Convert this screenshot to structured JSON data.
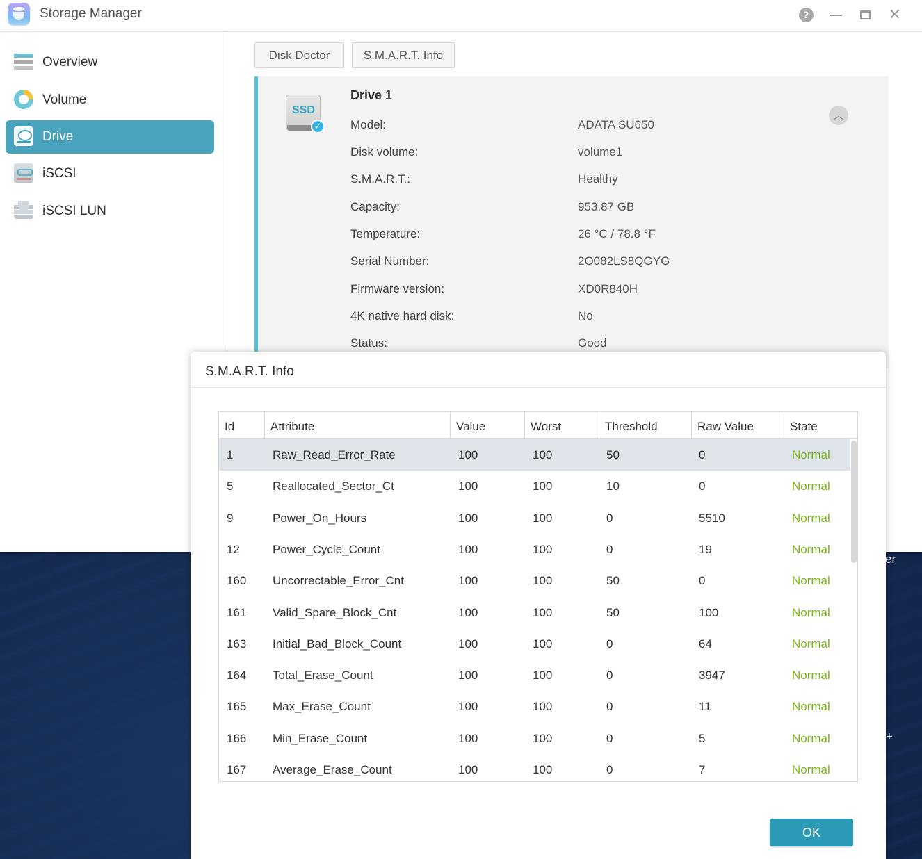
{
  "window": {
    "title": "Storage Manager"
  },
  "titlebar": {
    "help_glyph": "?",
    "close_glyph": "✕"
  },
  "sidebar": {
    "items": [
      {
        "label": "Overview",
        "icon": "overview-icon"
      },
      {
        "label": "Volume",
        "icon": "volume-icon"
      },
      {
        "label": "Drive",
        "icon": "drive-icon",
        "active": true
      },
      {
        "label": "iSCSI",
        "icon": "iscsi-icon"
      },
      {
        "label": "iSCSI LUN",
        "icon": "iscsi-lun-icon"
      }
    ]
  },
  "tabs": {
    "disk_doctor": "Disk Doctor",
    "smart_info": "S.M.A.R.T. Info"
  },
  "drive": {
    "ssd_label": "SSD",
    "title": "Drive 1",
    "properties": [
      {
        "label": "Model:",
        "value": "ADATA SU650"
      },
      {
        "label": "Disk volume:",
        "value": "volume1"
      },
      {
        "label": "S.M.A.R.T.:",
        "value": "Healthy"
      },
      {
        "label": "Capacity:",
        "value": "953.87 GB"
      },
      {
        "label": "Temperature:",
        "value": "26 °C / 78.8 °F"
      },
      {
        "label": "Serial Number:",
        "value": "2O082LS8QGYG"
      },
      {
        "label": "Firmware version:",
        "value": "XD0R840H"
      },
      {
        "label": "4K native hard disk:",
        "value": "No"
      },
      {
        "label": "Status:",
        "value": "Good"
      }
    ]
  },
  "desktop": {
    "fragment_1": "er",
    "fragment_2": "+"
  },
  "dialog": {
    "title": "S.M.A.R.T. Info",
    "columns": [
      "Id",
      "Attribute",
      "Value",
      "Worst",
      "Threshold",
      "Raw Value",
      "State"
    ],
    "rows": [
      {
        "id": "1",
        "attribute": "Raw_Read_Error_Rate",
        "value": "100",
        "worst": "100",
        "threshold": "50",
        "raw": "0",
        "state": "Normal"
      },
      {
        "id": "5",
        "attribute": "Reallocated_Sector_Ct",
        "value": "100",
        "worst": "100",
        "threshold": "10",
        "raw": "0",
        "state": "Normal"
      },
      {
        "id": "9",
        "attribute": "Power_On_Hours",
        "value": "100",
        "worst": "100",
        "threshold": "0",
        "raw": "5510",
        "state": "Normal"
      },
      {
        "id": "12",
        "attribute": "Power_Cycle_Count",
        "value": "100",
        "worst": "100",
        "threshold": "0",
        "raw": "19",
        "state": "Normal"
      },
      {
        "id": "160",
        "attribute": "Uncorrectable_Error_Cnt",
        "value": "100",
        "worst": "100",
        "threshold": "50",
        "raw": "0",
        "state": "Normal"
      },
      {
        "id": "161",
        "attribute": "Valid_Spare_Block_Cnt",
        "value": "100",
        "worst": "100",
        "threshold": "50",
        "raw": "100",
        "state": "Normal"
      },
      {
        "id": "163",
        "attribute": "Initial_Bad_Block_Count",
        "value": "100",
        "worst": "100",
        "threshold": "0",
        "raw": "64",
        "state": "Normal"
      },
      {
        "id": "164",
        "attribute": "Total_Erase_Count",
        "value": "100",
        "worst": "100",
        "threshold": "0",
        "raw": "3947",
        "state": "Normal"
      },
      {
        "id": "165",
        "attribute": "Max_Erase_Count",
        "value": "100",
        "worst": "100",
        "threshold": "0",
        "raw": "11",
        "state": "Normal"
      },
      {
        "id": "166",
        "attribute": "Min_Erase_Count",
        "value": "100",
        "worst": "100",
        "threshold": "0",
        "raw": "5",
        "state": "Normal"
      },
      {
        "id": "167",
        "attribute": "Average_Erase_Count",
        "value": "100",
        "worst": "100",
        "threshold": "0",
        "raw": "7",
        "state": "Normal"
      }
    ],
    "ok_label": "OK"
  },
  "colors": {
    "accent": "#4aa3bd",
    "ok_button": "#2b9bb8",
    "state_normal": "#7cb518",
    "panel_border": "#56c7d9",
    "selected_row": "#dfe3ea"
  }
}
